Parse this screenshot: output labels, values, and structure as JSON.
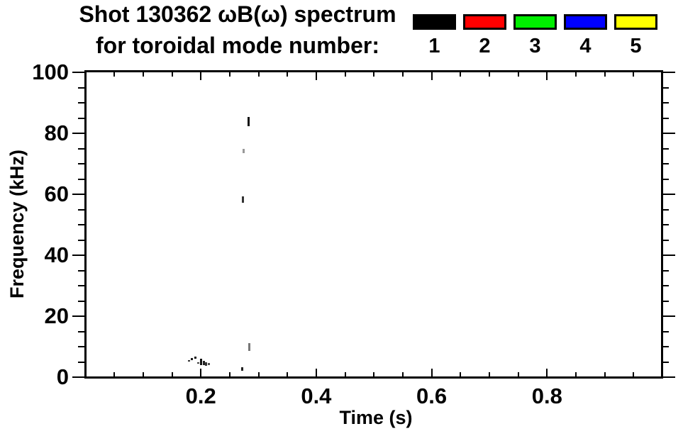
{
  "chart_data": {
    "type": "scatter",
    "title": "Shot 130362 ωB(ω) spectrum",
    "subtitle": "for toroidal mode number:",
    "xlabel": "Time (s)",
    "ylabel": "Frequency (kHz)",
    "xlim": [
      0,
      1.0
    ],
    "ylim": [
      0,
      100
    ],
    "x_major_ticks": [
      0.2,
      0.4,
      0.6,
      0.8
    ],
    "x_major_tick_labels": [
      "0.2",
      "0.4",
      "0.6",
      "0.8"
    ],
    "x_minor_tick_step": 0.05,
    "y_major_ticks": [
      0,
      20,
      40,
      60,
      80,
      100
    ],
    "y_major_tick_labels": [
      "0",
      "20",
      "40",
      "60",
      "80",
      "100"
    ],
    "y_minor_tick_step": 5,
    "grid": false,
    "background": "#ffffff",
    "axis_color": "#000000",
    "legend": {
      "position": "top-right",
      "entries": [
        {
          "label": "1",
          "color": "#000000"
        },
        {
          "label": "2",
          "color": "#ff0000"
        },
        {
          "label": "3",
          "color": "#00ee00"
        },
        {
          "label": "4",
          "color": "#0000ff"
        },
        {
          "label": "5",
          "color": "#ffff00"
        }
      ]
    },
    "points": [
      {
        "t": 0.18,
        "f": 5.3,
        "df": 0.6,
        "mode": 1,
        "shade": "#333333"
      },
      {
        "t": 0.185,
        "f": 5.9,
        "df": 0.6,
        "mode": 1,
        "shade": "#1a1a1a"
      },
      {
        "t": 0.19,
        "f": 6.4,
        "df": 0.7,
        "mode": 1,
        "shade": "#111111"
      },
      {
        "t": 0.196,
        "f": 4.7,
        "df": 0.5,
        "mode": 1,
        "shade": "#444444"
      },
      {
        "t": 0.2,
        "f": 5.0,
        "df": 2.2,
        "mode": 1,
        "shade": "#111111"
      },
      {
        "t": 0.205,
        "f": 4.7,
        "df": 1.5,
        "mode": 1,
        "shade": "#222222"
      },
      {
        "t": 0.209,
        "f": 4.3,
        "df": 1.0,
        "mode": 1,
        "shade": "#333333"
      },
      {
        "t": 0.214,
        "f": 4.4,
        "df": 0.7,
        "mode": 1,
        "shade": "#4d4d4d"
      },
      {
        "t": 0.272,
        "f": 2.7,
        "df": 1.2,
        "mode": 1,
        "shade": "#222222"
      },
      {
        "t": 0.284,
        "f": 9.8,
        "df": 2.6,
        "mode": 1,
        "shade": "#777777"
      },
      {
        "t": 0.273,
        "f": 58.2,
        "df": 2.1,
        "mode": 1,
        "shade": "#333333"
      },
      {
        "t": 0.274,
        "f": 74.2,
        "df": 1.5,
        "mode": 1,
        "shade": "#999999"
      },
      {
        "t": 0.283,
        "f": 83.8,
        "df": 3.0,
        "mode": 1,
        "shade": "#111111"
      }
    ]
  }
}
